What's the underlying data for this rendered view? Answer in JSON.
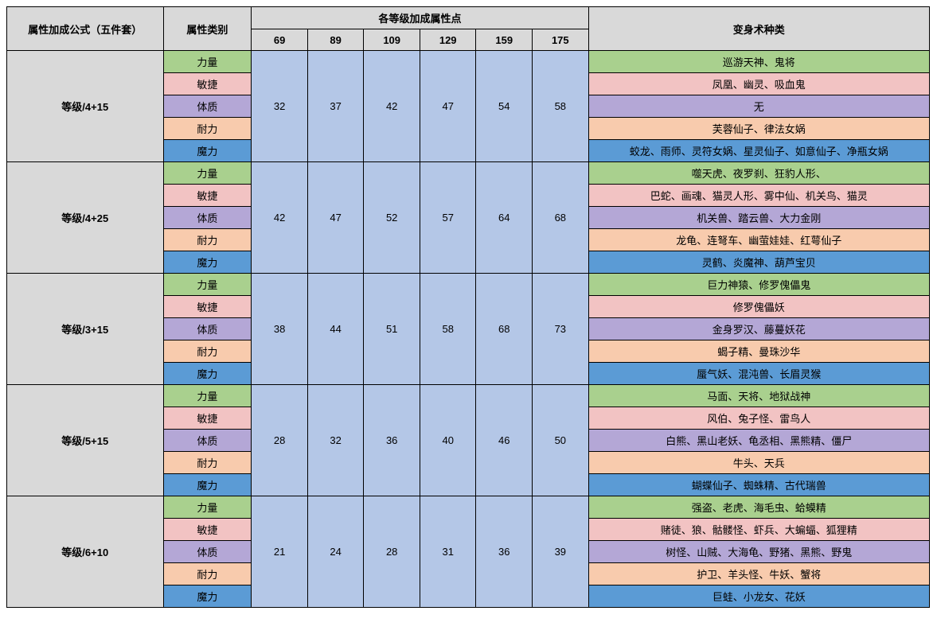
{
  "headers": {
    "formula": "属性加成公式（五件套）",
    "attrType": "属性类别",
    "levelGroup": "各等级加成属性点",
    "transformType": "变身术种类",
    "levels": [
      "69",
      "89",
      "109",
      "129",
      "159",
      "175"
    ]
  },
  "attrNames": {
    "str": "力量",
    "agi": "敏捷",
    "con": "体质",
    "sta": "耐力",
    "mag": "魔力"
  },
  "colors": {
    "header": "#d9d9d9",
    "value": "#b4c7e7",
    "green": "#a9d08e",
    "pink": "#f2c3c3",
    "purple": "#b4a7d6",
    "orange": "#f8cbad",
    "blue": "#5b9bd5",
    "border": "#000000"
  },
  "groups": [
    {
      "formula": "等级/4+15",
      "values": [
        "32",
        "37",
        "42",
        "47",
        "54",
        "58"
      ],
      "types": {
        "str": "巡游天神、鬼将",
        "agi": "凤凰、幽灵、吸血鬼",
        "con": "无",
        "sta": "芙蓉仙子、律法女娲",
        "mag": "蛟龙、雨师、灵符女娲、星灵仙子、如意仙子、净瓶女娲"
      }
    },
    {
      "formula": "等级/4+25",
      "values": [
        "42",
        "47",
        "52",
        "57",
        "64",
        "68"
      ],
      "types": {
        "str": "噬天虎、夜罗刹、狂豹人形、",
        "agi": "巴蛇、画魂、猫灵人形、雾中仙、机关鸟、猫灵",
        "con": "机关兽、踏云兽、大力金刚",
        "sta": "龙龟、连弩车、幽萤娃娃、红萼仙子",
        "mag": "灵鹤、炎魔神、葫芦宝贝"
      }
    },
    {
      "formula": "等级/3+15",
      "values": [
        "38",
        "44",
        "51",
        "58",
        "68",
        "73"
      ],
      "types": {
        "str": "巨力神猿、修罗傀儡鬼",
        "agi": "修罗傀儡妖",
        "con": "金身罗汉、藤蔓妖花",
        "sta": "蝎子精、曼珠沙华",
        "mag": "蜃气妖、混沌兽、长眉灵猴"
      }
    },
    {
      "formula": "等级/5+15",
      "values": [
        "28",
        "32",
        "36",
        "40",
        "46",
        "50"
      ],
      "types": {
        "str": "马面、天将、地狱战神",
        "agi": "风伯、兔子怪、雷鸟人",
        "con": "白熊、黑山老妖、龟丞相、黑熊精、僵尸",
        "sta": "牛头、天兵",
        "mag": "蝴蝶仙子、蜘蛛精、古代瑞兽"
      }
    },
    {
      "formula": "等级/6+10",
      "values": [
        "21",
        "24",
        "28",
        "31",
        "36",
        "39"
      ],
      "types": {
        "str": "强盗、老虎、海毛虫、蛤蟆精",
        "agi": "赌徒、狼、骷髅怪、虾兵、大蝙蝠、狐狸精",
        "con": "树怪、山贼、大海龟、野猪、黑熊、野鬼",
        "sta": "护卫、羊头怪、牛妖、蟹将",
        "mag": "巨蛙、小龙女、花妖"
      }
    }
  ]
}
